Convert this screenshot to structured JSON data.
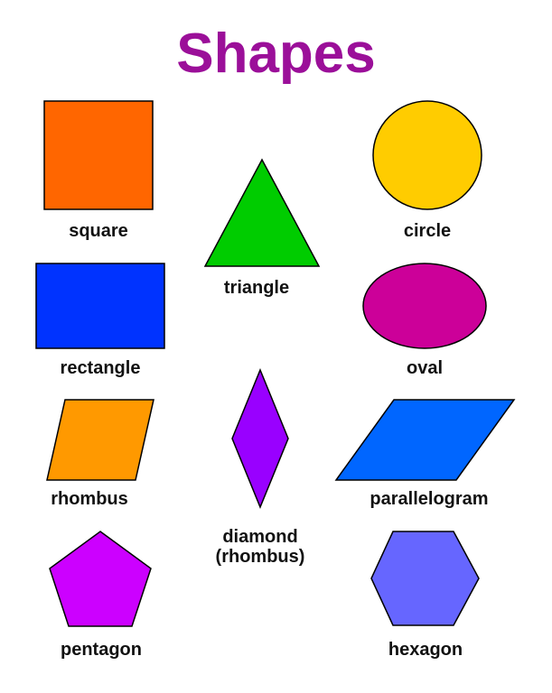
{
  "title": {
    "text": "Shapes",
    "color": "#9b0f99"
  },
  "shapes": [
    {
      "label": "square",
      "color": "#ff6600"
    },
    {
      "label": "triangle",
      "color": "#00cc00"
    },
    {
      "label": "circle",
      "color": "#ffcc00"
    },
    {
      "label": "rectangle",
      "color": "#0033ff"
    },
    {
      "label": "oval",
      "color": "#cc0099"
    },
    {
      "label": "rhombus",
      "color": "#ff9900"
    },
    {
      "label": "diamond",
      "label2": "(rhombus)",
      "color": "#9900ff"
    },
    {
      "label": "parallelogram",
      "color": "#0066ff"
    },
    {
      "label": "pentagon",
      "color": "#cc00ff"
    },
    {
      "label": "hexagon",
      "color": "#6666ff"
    }
  ]
}
